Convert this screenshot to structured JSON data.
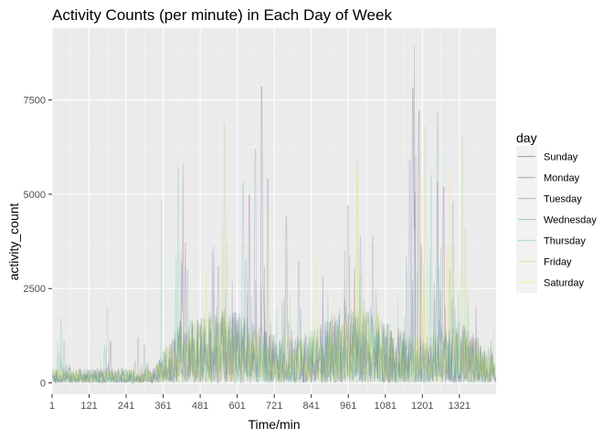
{
  "chart_data": {
    "type": "line",
    "title": "Activity Counts (per minute) in Each Day of Week",
    "xlabel": "Time/min",
    "ylabel": "activity_count",
    "xlim": [
      1,
      1440
    ],
    "ylim": [
      -300,
      9400
    ],
    "x_ticks": [
      1,
      121,
      241,
      361,
      481,
      601,
      721,
      841,
      961,
      1081,
      1201,
      1321
    ],
    "y_ticks": [
      0,
      2500,
      5000,
      7500
    ],
    "grid": true,
    "legend_position": "right",
    "legend_title": "day",
    "series": [
      {
        "name": "Sunday",
        "color": "#440154",
        "peaks": [
          [
            680,
            7850
          ],
          [
            425,
            5800
          ],
          [
            1170,
            7800
          ],
          [
            1190,
            7200
          ],
          [
            640,
            5000
          ],
          [
            1270,
            5200
          ],
          [
            190,
            1100
          ]
        ]
      },
      {
        "name": "Monday",
        "color": "#443A83",
        "peaks": [
          [
            1175,
            8950
          ],
          [
            700,
            5400
          ],
          [
            960,
            4700
          ],
          [
            1250,
            5300
          ],
          [
            540,
            3100
          ],
          [
            760,
            4400
          ]
        ]
      },
      {
        "name": "Tuesday",
        "color": "#31688E",
        "peaks": [
          [
            660,
            6200
          ],
          [
            1160,
            5900
          ],
          [
            1040,
            3900
          ],
          [
            280,
            1200
          ],
          [
            300,
            1000
          ],
          [
            800,
            3200
          ]
        ]
      },
      {
        "name": "Wednesday",
        "color": "#21908C",
        "peaks": [
          [
            1250,
            7200
          ],
          [
            620,
            5300
          ],
          [
            1000,
            3900
          ],
          [
            1300,
            4800
          ],
          [
            440,
            3000
          ],
          [
            40,
            1100
          ]
        ]
      },
      {
        "name": "Thursday",
        "color": "#35B779",
        "peaks": [
          [
            410,
            5700
          ],
          [
            355,
            4850
          ],
          [
            1230,
            5500
          ],
          [
            30,
            1700
          ],
          [
            1180,
            6000
          ],
          [
            180,
            2000
          ]
        ]
      },
      {
        "name": "Friday",
        "color": "#8FD744",
        "peaks": [
          [
            1210,
            6800
          ],
          [
            560,
            6900
          ],
          [
            1330,
            6500
          ],
          [
            990,
            5900
          ],
          [
            1340,
            4100
          ],
          [
            760,
            3200
          ]
        ]
      },
      {
        "name": "Saturday",
        "color": "#FDE725",
        "peaks": [
          [
            990,
            5600
          ],
          [
            1200,
            5400
          ],
          [
            700,
            4600
          ],
          [
            1290,
            5600
          ],
          [
            500,
            2900
          ],
          [
            860,
            3300
          ]
        ]
      }
    ]
  }
}
